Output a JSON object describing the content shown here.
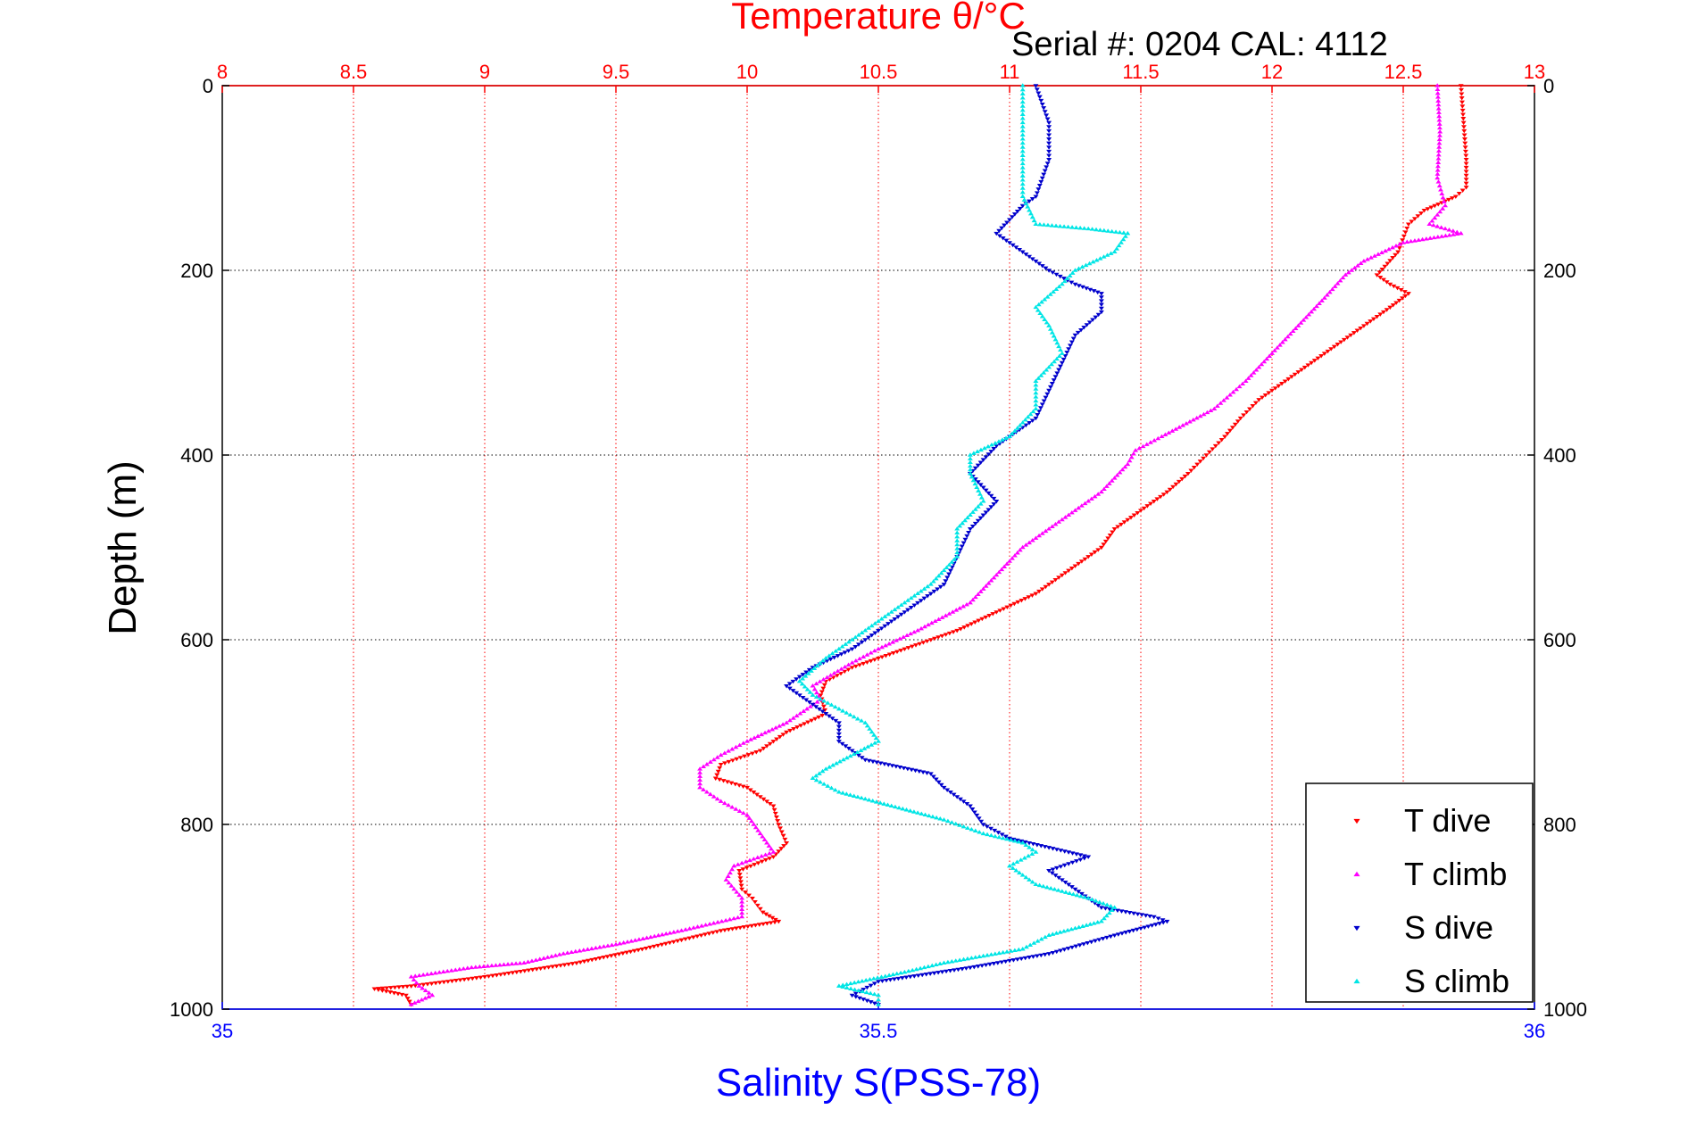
{
  "chart_data": {
    "type": "scatter",
    "title_top_axis": "Temperature θ/°C",
    "serial_text": "Serial #: 0204  CAL: 4112",
    "ylabel": "Depth (m)",
    "xlabel_bottom": "Salinity S(PSS-78)",
    "y_axis": {
      "range": [
        0,
        1000
      ],
      "reversed": true,
      "ticks": [
        0,
        200,
        400,
        600,
        800,
        1000
      ],
      "tick_labels": [
        "0",
        "200",
        "400",
        "600",
        "800",
        "1000"
      ]
    },
    "top_axis": {
      "range": [
        8,
        13
      ],
      "ticks": [
        8,
        8.5,
        9,
        9.5,
        10,
        10.5,
        11,
        11.5,
        12,
        12.5,
        13
      ],
      "tick_labels": [
        "8",
        "8.5",
        "9",
        "9.5",
        "10",
        "10.5",
        "11",
        "11.5",
        "12",
        "12.5",
        "13"
      ]
    },
    "bottom_axis": {
      "range": [
        35,
        36
      ],
      "ticks": [
        35,
        35.5,
        36
      ],
      "tick_labels": [
        "35",
        "35.5",
        "36"
      ]
    },
    "grid": true,
    "legend_position": "bottom-right",
    "colors": {
      "t_dive": "#ff0000",
      "t_climb": "#ff00ff",
      "s_dive": "#0000cc",
      "s_climb": "#00e5e5",
      "top_axis": "#ff0000",
      "bottom_axis": "#0000ff"
    },
    "series": [
      {
        "name": "T dive",
        "axis": "temperature",
        "color": "#ff0000",
        "marker": "triangle-down",
        "points": [
          [
            12.72,
            0
          ],
          [
            12.73,
            40
          ],
          [
            12.74,
            80
          ],
          [
            12.74,
            110
          ],
          [
            12.7,
            120
          ],
          [
            12.58,
            135
          ],
          [
            12.52,
            150
          ],
          [
            12.48,
            180
          ],
          [
            12.4,
            205
          ],
          [
            12.45,
            215
          ],
          [
            12.52,
            225
          ],
          [
            12.45,
            240
          ],
          [
            12.35,
            260
          ],
          [
            12.25,
            280
          ],
          [
            12.15,
            300
          ],
          [
            12.05,
            320
          ],
          [
            11.95,
            340
          ],
          [
            11.88,
            360
          ],
          [
            11.82,
            380
          ],
          [
            11.75,
            400
          ],
          [
            11.68,
            420
          ],
          [
            11.6,
            440
          ],
          [
            11.5,
            460
          ],
          [
            11.4,
            480
          ],
          [
            11.35,
            500
          ],
          [
            11.25,
            520
          ],
          [
            11.1,
            550
          ],
          [
            10.95,
            570
          ],
          [
            10.8,
            590
          ],
          [
            10.6,
            610
          ],
          [
            10.4,
            630
          ],
          [
            10.3,
            645
          ],
          [
            10.28,
            660
          ],
          [
            10.3,
            680
          ],
          [
            10.15,
            700
          ],
          [
            10.05,
            720
          ],
          [
            9.9,
            735
          ],
          [
            9.88,
            750
          ],
          [
            10.0,
            760
          ],
          [
            10.1,
            780
          ],
          [
            10.12,
            800
          ],
          [
            10.15,
            820
          ],
          [
            10.1,
            835
          ],
          [
            9.97,
            850
          ],
          [
            9.98,
            870
          ],
          [
            10.02,
            880
          ],
          [
            10.06,
            895
          ],
          [
            10.12,
            905
          ],
          [
            9.9,
            915
          ],
          [
            9.6,
            935
          ],
          [
            9.35,
            950
          ],
          [
            9.0,
            965
          ],
          [
            8.72,
            975
          ],
          [
            8.58,
            978
          ],
          [
            8.7,
            985
          ],
          [
            8.72,
            995
          ]
        ]
      },
      {
        "name": "T climb",
        "axis": "temperature",
        "color": "#ff00ff",
        "marker": "triangle-up",
        "points": [
          [
            12.63,
            0
          ],
          [
            12.64,
            50
          ],
          [
            12.63,
            100
          ],
          [
            12.66,
            130
          ],
          [
            12.6,
            150
          ],
          [
            12.72,
            160
          ],
          [
            12.5,
            170
          ],
          [
            12.35,
            190
          ],
          [
            12.28,
            205
          ],
          [
            12.2,
            230
          ],
          [
            12.1,
            260
          ],
          [
            12.0,
            290
          ],
          [
            11.9,
            320
          ],
          [
            11.78,
            350
          ],
          [
            11.58,
            380
          ],
          [
            11.48,
            395
          ],
          [
            11.45,
            410
          ],
          [
            11.35,
            440
          ],
          [
            11.2,
            470
          ],
          [
            11.05,
            500
          ],
          [
            10.95,
            530
          ],
          [
            10.85,
            560
          ],
          [
            10.65,
            590
          ],
          [
            10.5,
            610
          ],
          [
            10.4,
            625
          ],
          [
            10.25,
            650
          ],
          [
            10.28,
            665
          ],
          [
            10.15,
            690
          ],
          [
            10.0,
            710
          ],
          [
            9.9,
            725
          ],
          [
            9.82,
            740
          ],
          [
            9.82,
            760
          ],
          [
            9.9,
            775
          ],
          [
            10.0,
            790
          ],
          [
            10.05,
            810
          ],
          [
            10.1,
            830
          ],
          [
            9.95,
            845
          ],
          [
            9.92,
            860
          ],
          [
            9.98,
            880
          ],
          [
            9.98,
            900
          ],
          [
            9.75,
            915
          ],
          [
            9.5,
            930
          ],
          [
            9.3,
            940
          ],
          [
            9.15,
            950
          ],
          [
            8.95,
            955
          ],
          [
            8.72,
            965
          ],
          [
            8.75,
            975
          ],
          [
            8.8,
            985
          ],
          [
            8.72,
            995
          ]
        ]
      },
      {
        "name": "S dive",
        "axis": "salinity",
        "color": "#0000cc",
        "marker": "triangle-down",
        "points": [
          [
            35.62,
            0
          ],
          [
            35.63,
            40
          ],
          [
            35.63,
            80
          ],
          [
            35.62,
            120
          ],
          [
            35.61,
            130
          ],
          [
            35.6,
            145
          ],
          [
            35.59,
            160
          ],
          [
            35.61,
            180
          ],
          [
            35.63,
            200
          ],
          [
            35.65,
            215
          ],
          [
            35.67,
            225
          ],
          [
            35.67,
            245
          ],
          [
            35.65,
            270
          ],
          [
            35.64,
            300
          ],
          [
            35.63,
            330
          ],
          [
            35.62,
            360
          ],
          [
            35.59,
            390
          ],
          [
            35.57,
            420
          ],
          [
            35.59,
            450
          ],
          [
            35.57,
            480
          ],
          [
            35.56,
            510
          ],
          [
            35.55,
            540
          ],
          [
            35.53,
            560
          ],
          [
            35.5,
            590
          ],
          [
            35.48,
            610
          ],
          [
            35.45,
            630
          ],
          [
            35.43,
            650
          ],
          [
            35.45,
            670
          ],
          [
            35.47,
            690
          ],
          [
            35.47,
            710
          ],
          [
            35.49,
            730
          ],
          [
            35.54,
            745
          ],
          [
            35.55,
            760
          ],
          [
            35.57,
            780
          ],
          [
            35.58,
            800
          ],
          [
            35.6,
            815
          ],
          [
            35.63,
            825
          ],
          [
            35.66,
            835
          ],
          [
            35.63,
            850
          ],
          [
            35.65,
            870
          ],
          [
            35.67,
            890
          ],
          [
            35.71,
            900
          ],
          [
            35.72,
            905
          ],
          [
            35.68,
            920
          ],
          [
            35.63,
            940
          ],
          [
            35.57,
            955
          ],
          [
            35.5,
            970
          ],
          [
            35.48,
            985
          ],
          [
            35.5,
            995
          ]
        ]
      },
      {
        "name": "S climb",
        "axis": "salinity",
        "color": "#00e5e5",
        "marker": "triangle-up",
        "points": [
          [
            35.61,
            0
          ],
          [
            35.61,
            40
          ],
          [
            35.61,
            80
          ],
          [
            35.61,
            120
          ],
          [
            35.62,
            150
          ],
          [
            35.66,
            155
          ],
          [
            35.69,
            160
          ],
          [
            35.68,
            180
          ],
          [
            35.65,
            200
          ],
          [
            35.64,
            215
          ],
          [
            35.62,
            240
          ],
          [
            35.63,
            260
          ],
          [
            35.64,
            290
          ],
          [
            35.62,
            320
          ],
          [
            35.62,
            350
          ],
          [
            35.6,
            380
          ],
          [
            35.57,
            400
          ],
          [
            35.57,
            420
          ],
          [
            35.58,
            450
          ],
          [
            35.56,
            480
          ],
          [
            35.56,
            510
          ],
          [
            35.54,
            540
          ],
          [
            35.51,
            570
          ],
          [
            35.49,
            590
          ],
          [
            35.46,
            620
          ],
          [
            35.44,
            645
          ],
          [
            35.45,
            660
          ],
          [
            35.47,
            675
          ],
          [
            35.49,
            690
          ],
          [
            35.5,
            710
          ],
          [
            35.46,
            740
          ],
          [
            35.45,
            750
          ],
          [
            35.47,
            765
          ],
          [
            35.51,
            780
          ],
          [
            35.55,
            795
          ],
          [
            35.58,
            810
          ],
          [
            35.61,
            820
          ],
          [
            35.62,
            830
          ],
          [
            35.6,
            845
          ],
          [
            35.62,
            865
          ],
          [
            35.66,
            880
          ],
          [
            35.68,
            890
          ],
          [
            35.67,
            905
          ],
          [
            35.63,
            920
          ],
          [
            35.61,
            935
          ],
          [
            35.55,
            950
          ],
          [
            35.52,
            960
          ],
          [
            35.47,
            975
          ],
          [
            35.5,
            985
          ],
          [
            35.5,
            995
          ]
        ]
      }
    ]
  }
}
